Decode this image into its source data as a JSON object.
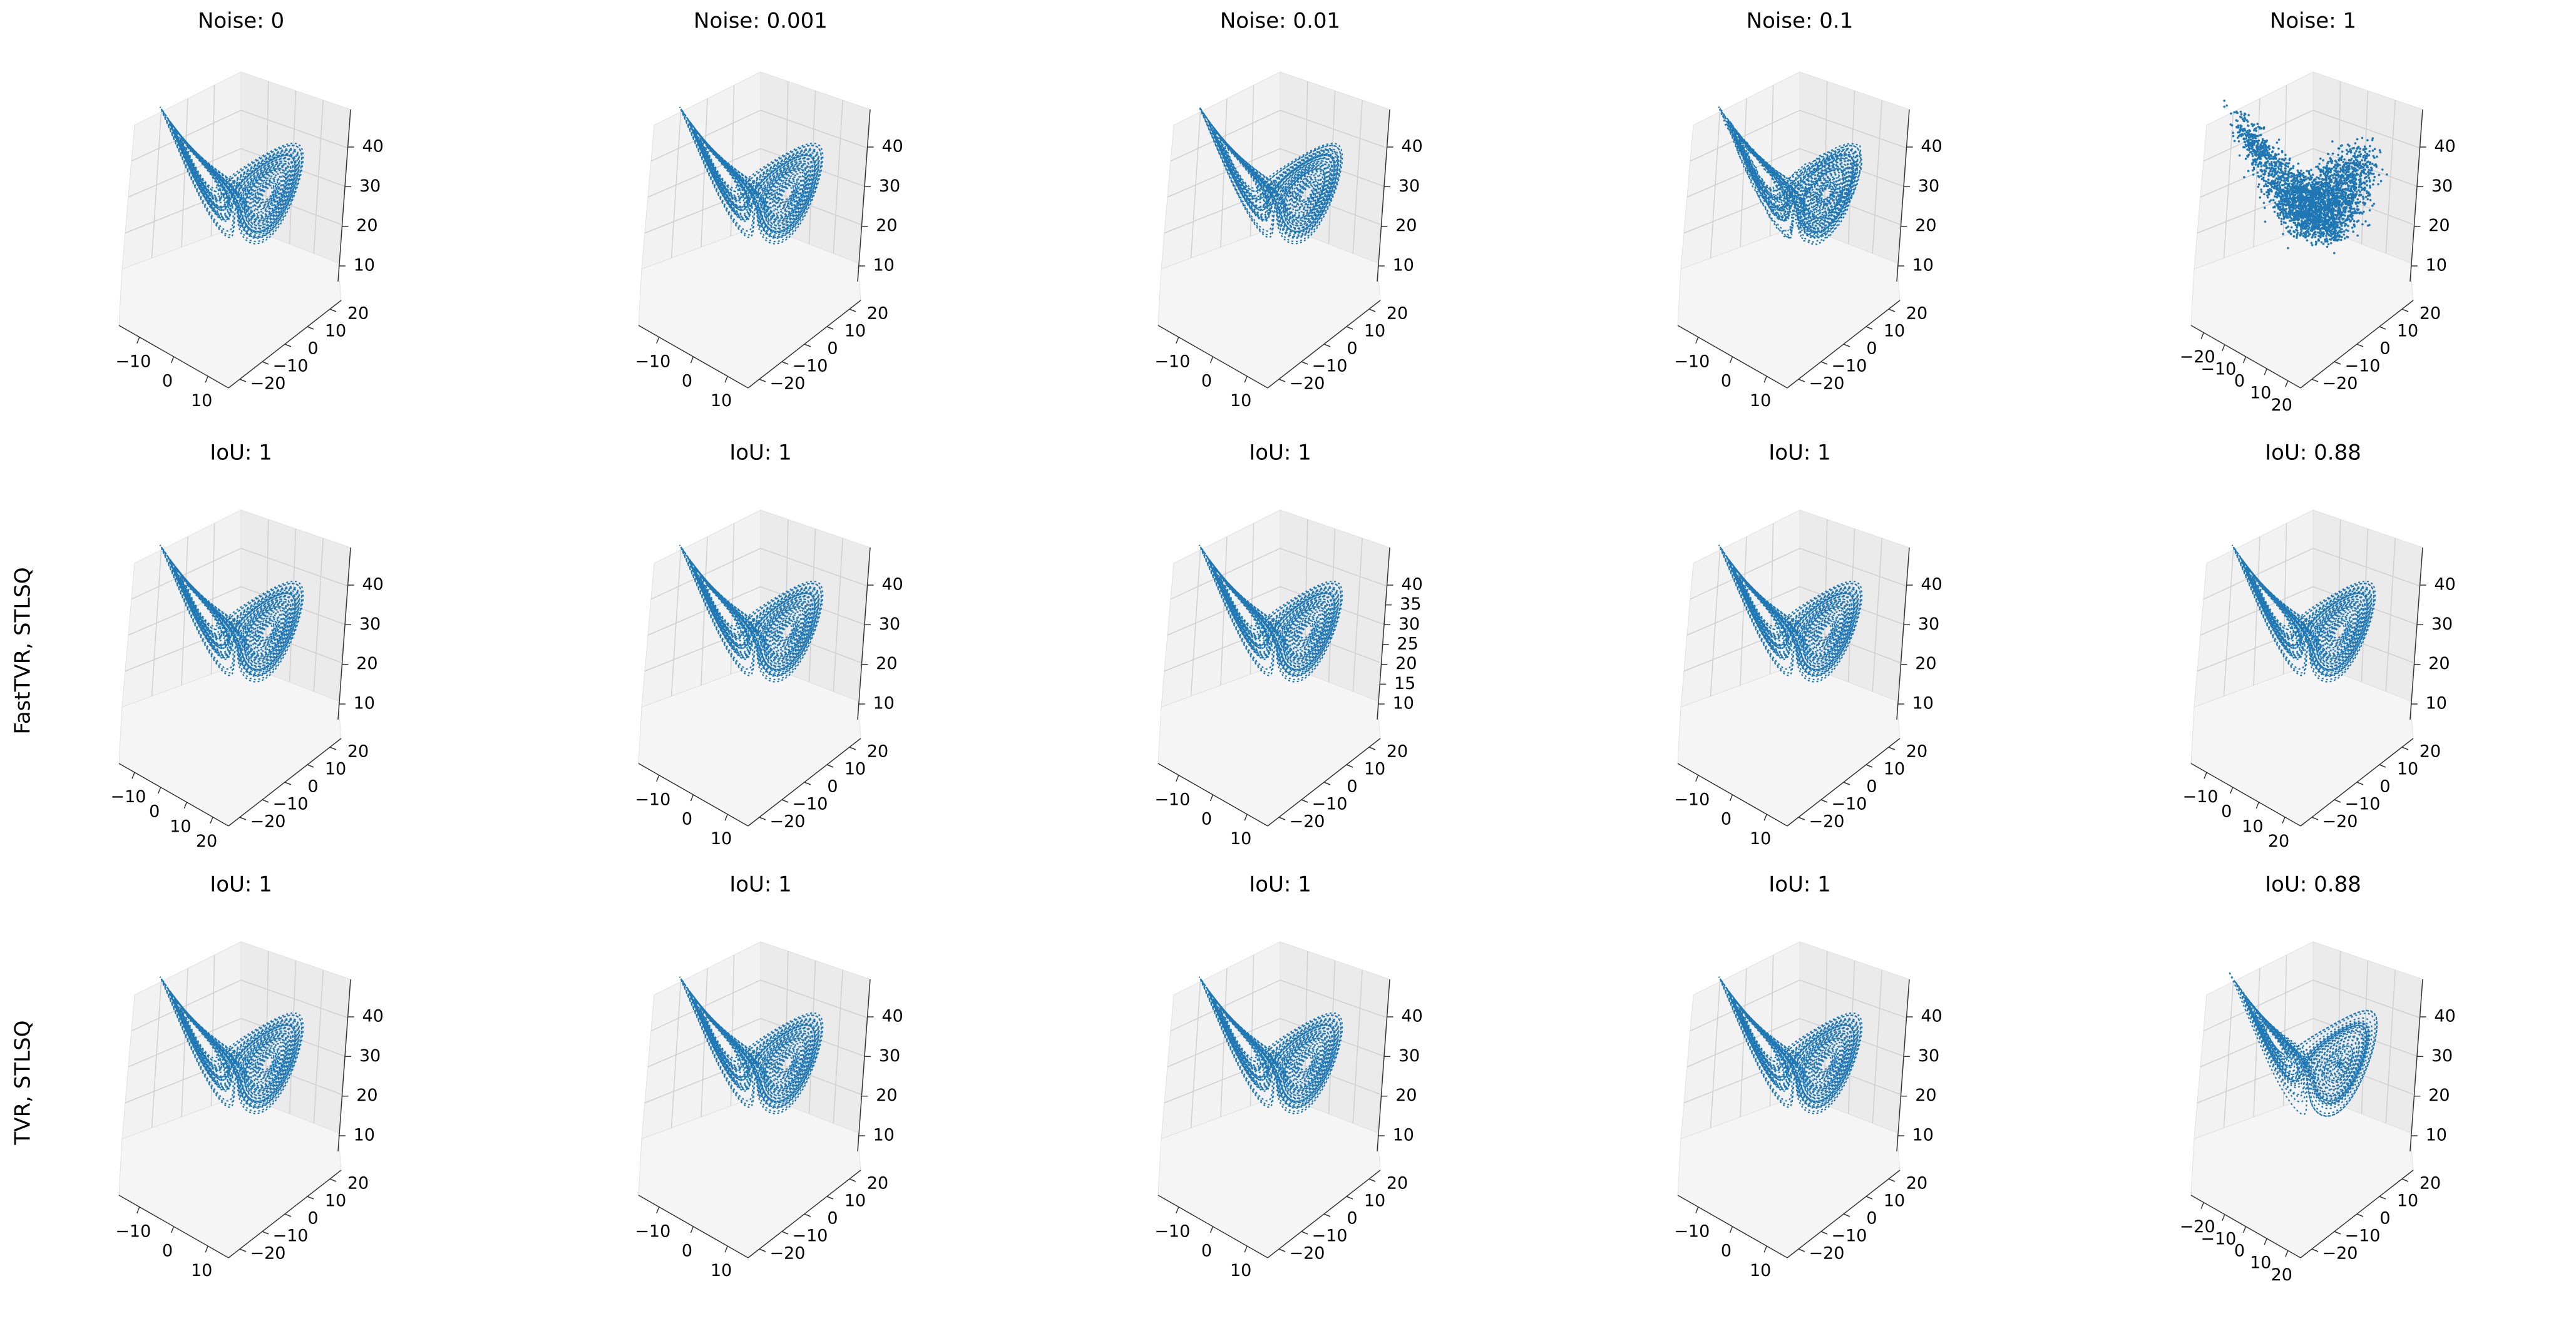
{
  "figure": {
    "row_labels": [
      "",
      "FastTVR, STLSQ",
      "TVR, STLSQ"
    ],
    "panel_titles": [
      [
        "Noise: 0",
        "Noise: 0.001",
        "Noise: 0.01",
        "Noise: 0.1",
        "Noise: 1"
      ],
      [
        "IoU: 1",
        "IoU: 1",
        "IoU: 1",
        "IoU: 1",
        "IoU: 0.88"
      ],
      [
        "IoU: 1",
        "IoU: 1",
        "IoU: 1",
        "IoU: 1",
        "IoU: 0.88"
      ]
    ]
  },
  "chart_data": [
    {
      "type": "scatter",
      "title": "Noise: 0",
      "projection": "3d",
      "x_ticks": [
        "−10",
        "0",
        "10"
      ],
      "y_ticks": [
        "20",
        "10",
        "0",
        "−10",
        "−20"
      ],
      "z_ticks": [
        "40",
        "30",
        "20",
        "10"
      ],
      "marker_color": "#1f77b4",
      "noise": 0
    },
    {
      "type": "scatter",
      "title": "Noise: 0.001",
      "projection": "3d",
      "x_ticks": [
        "−10",
        "0",
        "10"
      ],
      "y_ticks": [
        "20",
        "10",
        "0",
        "−10",
        "−20"
      ],
      "z_ticks": [
        "40",
        "30",
        "20",
        "10"
      ],
      "marker_color": "#1f77b4",
      "noise": 0.001
    },
    {
      "type": "scatter",
      "title": "Noise: 0.01",
      "projection": "3d",
      "x_ticks": [
        "−10",
        "0",
        "10"
      ],
      "y_ticks": [
        "20",
        "10",
        "0",
        "−10",
        "−20"
      ],
      "z_ticks": [
        "40",
        "30",
        "20",
        "10"
      ],
      "marker_color": "#1f77b4",
      "noise": 0.01
    },
    {
      "type": "scatter",
      "title": "Noise: 0.1",
      "projection": "3d",
      "x_ticks": [
        "−10",
        "0",
        "10"
      ],
      "y_ticks": [
        "20",
        "10",
        "0",
        "−10",
        "−20"
      ],
      "z_ticks": [
        "40",
        "30",
        "20",
        "10"
      ],
      "marker_color": "#1f77b4",
      "noise": 0.1
    },
    {
      "type": "scatter",
      "title": "Noise: 1",
      "projection": "3d",
      "x_ticks": [
        "−20",
        "−10",
        "0",
        "10",
        "20"
      ],
      "y_ticks": [
        "20",
        "10",
        "0",
        "−10",
        "−20"
      ],
      "z_ticks": [
        "40",
        "30",
        "20",
        "10"
      ],
      "marker_color": "#1f77b4",
      "noise": 1
    },
    {
      "type": "scatter",
      "title": "IoU: 1",
      "row_label": "FastTVR, STLSQ",
      "projection": "3d",
      "x_ticks": [
        "−10",
        "0",
        "10",
        "20"
      ],
      "y_ticks": [
        "20",
        "10",
        "0",
        "−10",
        "−20"
      ],
      "z_ticks": [
        "40",
        "30",
        "20",
        "10"
      ],
      "marker_color": "#1f77b4"
    },
    {
      "type": "scatter",
      "title": "IoU: 1",
      "row_label": "FastTVR, STLSQ",
      "projection": "3d",
      "x_ticks": [
        "−10",
        "0",
        "10"
      ],
      "y_ticks": [
        "20",
        "10",
        "0",
        "−10",
        "−20"
      ],
      "z_ticks": [
        "40",
        "30",
        "20",
        "10"
      ],
      "marker_color": "#1f77b4"
    },
    {
      "type": "scatter",
      "title": "IoU: 1",
      "row_label": "FastTVR, STLSQ",
      "projection": "3d",
      "x_ticks": [
        "−10",
        "0",
        "10"
      ],
      "y_ticks": [
        "20",
        "10",
        "0",
        "−10",
        "−20"
      ],
      "z_ticks": [
        "40",
        "35",
        "30",
        "25",
        "20",
        "15",
        "10"
      ],
      "marker_color": "#1f77b4"
    },
    {
      "type": "scatter",
      "title": "IoU: 1",
      "row_label": "FastTVR, STLSQ",
      "projection": "3d",
      "x_ticks": [
        "−10",
        "0",
        "10"
      ],
      "y_ticks": [
        "20",
        "10",
        "0",
        "−10",
        "−20"
      ],
      "z_ticks": [
        "40",
        "30",
        "20",
        "10"
      ],
      "marker_color": "#1f77b4"
    },
    {
      "type": "scatter",
      "title": "IoU: 0.88",
      "row_label": "FastTVR, STLSQ",
      "projection": "3d",
      "x_ticks": [
        "−10",
        "0",
        "10",
        "20"
      ],
      "y_ticks": [
        "20",
        "10",
        "0",
        "−10",
        "−20"
      ],
      "z_ticks": [
        "40",
        "30",
        "20",
        "10"
      ],
      "marker_color": "#1f77b4"
    },
    {
      "type": "scatter",
      "title": "IoU: 1",
      "row_label": "TVR, STLSQ",
      "projection": "3d",
      "x_ticks": [
        "−10",
        "0",
        "10"
      ],
      "y_ticks": [
        "20",
        "10",
        "0",
        "−10",
        "−20"
      ],
      "z_ticks": [
        "40",
        "30",
        "20",
        "10"
      ],
      "marker_color": "#1f77b4"
    },
    {
      "type": "scatter",
      "title": "IoU: 1",
      "row_label": "TVR, STLSQ",
      "projection": "3d",
      "x_ticks": [
        "−10",
        "0",
        "10"
      ],
      "y_ticks": [
        "20",
        "10",
        "0",
        "−10",
        "−20"
      ],
      "z_ticks": [
        "40",
        "30",
        "20",
        "10"
      ],
      "marker_color": "#1f77b4"
    },
    {
      "type": "scatter",
      "title": "IoU: 1",
      "row_label": "TVR, STLSQ",
      "projection": "3d",
      "x_ticks": [
        "−10",
        "0",
        "10"
      ],
      "y_ticks": [
        "20",
        "10",
        "0",
        "−10",
        "−20"
      ],
      "z_ticks": [
        "40",
        "30",
        "20",
        "10"
      ],
      "marker_color": "#1f77b4"
    },
    {
      "type": "scatter",
      "title": "IoU: 1",
      "row_label": "TVR, STLSQ",
      "projection": "3d",
      "x_ticks": [
        "−10",
        "0",
        "10"
      ],
      "y_ticks": [
        "20",
        "10",
        "0",
        "−10",
        "−20"
      ],
      "z_ticks": [
        "40",
        "30",
        "20",
        "10"
      ],
      "marker_color": "#1f77b4"
    },
    {
      "type": "scatter",
      "title": "IoU: 0.88",
      "row_label": "TVR, STLSQ",
      "projection": "3d",
      "x_ticks": [
        "−20",
        "−10",
        "0",
        "10",
        "20"
      ],
      "y_ticks": [
        "20",
        "10",
        "0",
        "−10",
        "−20"
      ],
      "z_ticks": [
        "40",
        "30",
        "20",
        "10"
      ],
      "marker_color": "#1f77b4"
    }
  ]
}
